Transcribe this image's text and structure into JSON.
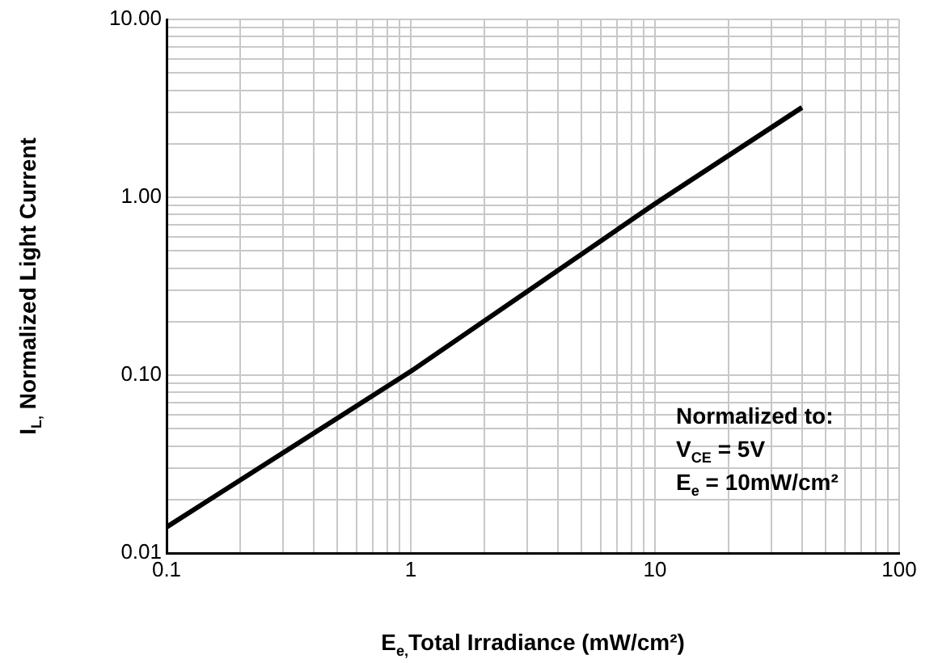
{
  "chart_data": {
    "type": "line",
    "xlabel": "E$_{e,}$Total Irradiance (mW/cm²)",
    "ylabel": "I$_{L,}$ Normalized Light Current",
    "log": "xy",
    "grid": true,
    "legend": false,
    "marker": "none",
    "line_style": "solid",
    "series": [
      {
        "color": "#000000",
        "x": [
          0.1,
          1,
          10,
          40
        ],
        "values": [
          0.014,
          0.105,
          0.92,
          3.2
        ]
      }
    ],
    "xlim": [
      0.1,
      100
    ],
    "ylim": [
      0.01,
      10
    ],
    "xticks": [
      0.1,
      {
        "value": 0.2,
        "label": null
      },
      {
        "value": 0.3,
        "label": null
      },
      {
        "value": 0.4,
        "label": null
      },
      {
        "value": 0.5,
        "label": null
      },
      {
        "value": 0.6,
        "label": null
      },
      {
        "value": 0.7,
        "label": null
      },
      {
        "value": 0.8,
        "label": null
      },
      {
        "value": 0.9,
        "label": null
      },
      1,
      {
        "value": 2,
        "label": null
      },
      {
        "value": 3,
        "label": null
      },
      {
        "value": 4,
        "label": null
      },
      {
        "value": 5,
        "label": null
      },
      {
        "value": 6,
        "label": null
      },
      {
        "value": 7,
        "label": null
      },
      {
        "value": 8,
        "label": null
      },
      {
        "value": 9,
        "label": null
      },
      10,
      {
        "value": 20,
        "label": null
      },
      {
        "value": 30,
        "label": null
      },
      {
        "value": 40,
        "label": null
      },
      {
        "value": 50,
        "label": null
      },
      {
        "value": 60,
        "label": null
      },
      {
        "value": 70,
        "label": null
      },
      {
        "value": 80,
        "label": null
      },
      {
        "value": 90,
        "label": null
      },
      100
    ],
    "yticks": [
      {
        "value": 0.01,
        "label": "0.01"
      },
      {
        "value": 0.02,
        "label": null
      },
      {
        "value": 0.03,
        "label": null
      },
      {
        "value": 0.04,
        "label": null
      },
      {
        "value": 0.05,
        "label": null
      },
      {
        "value": 0.06,
        "label": null
      },
      {
        "value": 0.07,
        "label": null
      },
      {
        "value": 0.08,
        "label": null
      },
      {
        "value": 0.09,
        "label": null
      },
      {
        "value": 0.1,
        "label": "0.10"
      },
      {
        "value": 0.2,
        "label": null
      },
      {
        "value": 0.3,
        "label": null
      },
      {
        "value": 0.4,
        "label": null
      },
      {
        "value": 0.5,
        "label": null
      },
      {
        "value": 0.6,
        "label": null
      },
      {
        "value": 0.7,
        "label": null
      },
      {
        "value": 0.8,
        "label": null
      },
      {
        "value": 0.9,
        "label": null
      },
      {
        "value": 1,
        "label": "1.00"
      },
      {
        "value": 2,
        "label": null
      },
      {
        "value": 3,
        "label": null
      },
      {
        "value": 4,
        "label": null
      },
      {
        "value": 5,
        "label": null
      },
      {
        "value": 6,
        "label": null
      },
      {
        "value": 7,
        "label": null
      },
      {
        "value": 8,
        "label": null
      },
      {
        "value": 9,
        "label": null
      },
      {
        "value": 10,
        "label": "10.00"
      }
    ],
    "annotations": [
      "Normalized to:",
      "V$_{CE}$ = 5V",
      "E$_{e}$ = 10mW/cm²"
    ]
  }
}
